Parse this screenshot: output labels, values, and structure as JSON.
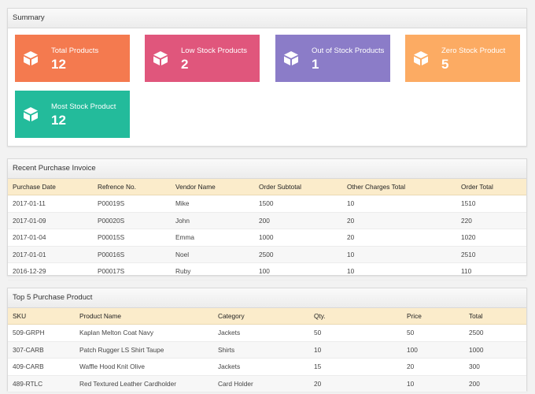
{
  "summary": {
    "title": "Summary",
    "tiles": [
      {
        "label": "Total Products",
        "value": "12",
        "color": "#f47a4f"
      },
      {
        "label": "Low Stock Products",
        "value": "2",
        "color": "#e0567c"
      },
      {
        "label": "Out of Stock Products",
        "value": "1",
        "color": "#8b7cc8"
      },
      {
        "label": "Zero Stock Product",
        "value": "5",
        "color": "#fcab63"
      },
      {
        "label": "Most Stock Product",
        "value": "12",
        "color": "#23bb9b"
      }
    ],
    "tile_icon": "cube-icon"
  },
  "invoice": {
    "title": "Recent Purchase Invoice",
    "columns": [
      "Purchase Date",
      "Refrence No.",
      "Vendor Name",
      "Order Subtotal",
      "Other Charges Total",
      "Order Total"
    ],
    "rows": [
      [
        "2017-01-11",
        "P00019S",
        "Mike",
        "1500",
        "10",
        "1510"
      ],
      [
        "2017-01-09",
        "P00020S",
        "John",
        "200",
        "20",
        "220"
      ],
      [
        "2017-01-04",
        "P00015S",
        "Emma",
        "1000",
        "20",
        "1020"
      ],
      [
        "2017-01-01",
        "P00016S",
        "Noel",
        "2500",
        "10",
        "2510"
      ],
      [
        "2016-12-29",
        "P00017S",
        "Ruby",
        "100",
        "10",
        "110"
      ]
    ]
  },
  "top5": {
    "title": "Top 5 Purchase Product",
    "columns": [
      "SKU",
      "Product Name",
      "Category",
      "Qty.",
      "Price",
      "Total"
    ],
    "rows": [
      [
        "509-GRPH",
        "Kaplan Melton Coat Navy",
        "Jackets",
        "50",
        "50",
        "2500"
      ],
      [
        "307-CARB",
        "Patch Rugger LS Shirt Taupe",
        "Shirts",
        "10",
        "100",
        "1000"
      ],
      [
        "409-CARB",
        "Waffle Hood Knit Olive",
        "Jackets",
        "15",
        "20",
        "300"
      ],
      [
        "489-RTLC",
        "Red Textured Leather Cardholder",
        "Card Holder",
        "20",
        "10",
        "200"
      ]
    ]
  }
}
